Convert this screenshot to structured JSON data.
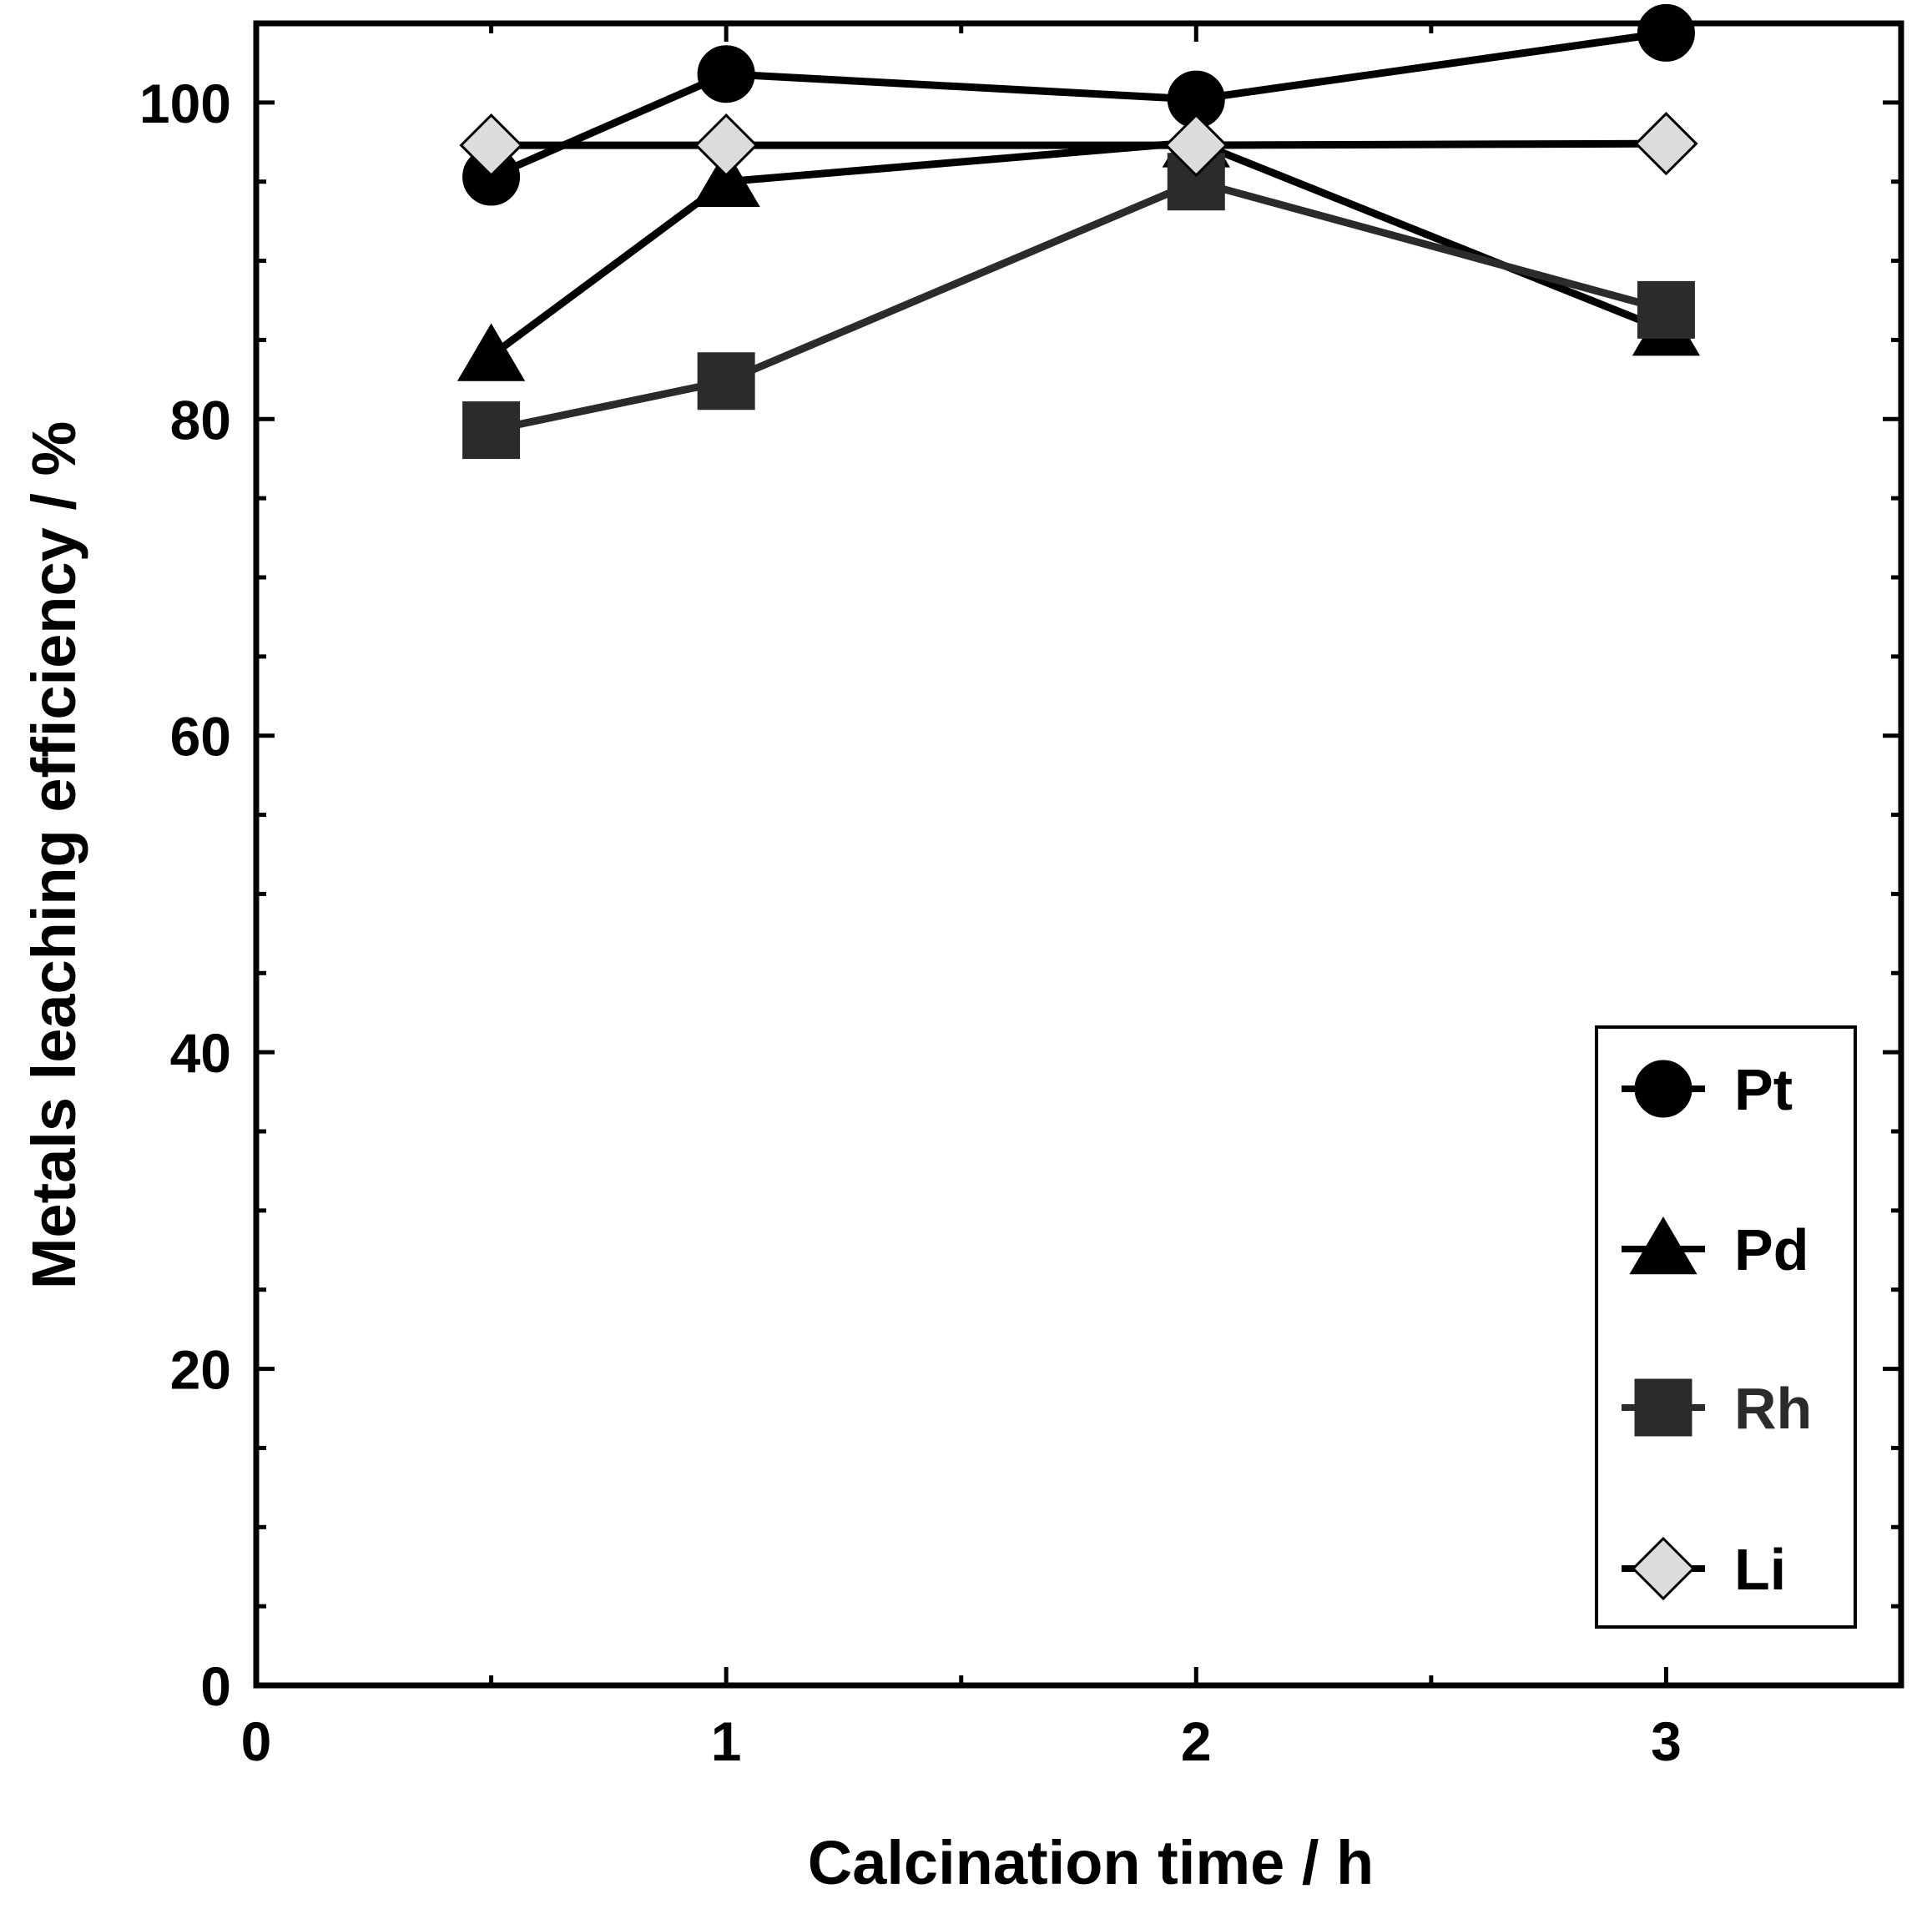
{
  "chart_data": {
    "type": "line",
    "title": "",
    "xlabel": "Calcination time / h",
    "ylabel": "Metals leaching efficiency / %",
    "xlim": [
      0,
      3.5
    ],
    "ylim": [
      0,
      105
    ],
    "x_ticks": [
      0,
      1,
      2,
      3
    ],
    "x_tick_labels": [
      "0",
      "1",
      "2",
      "3"
    ],
    "x_minor_ticks": [
      0.5,
      1.5,
      2.5
    ],
    "y_ticks": [
      0,
      20,
      40,
      60,
      80,
      100
    ],
    "y_tick_labels": [
      "0",
      "20",
      "40",
      "60",
      "80",
      "100"
    ],
    "y_minor_ticks": [
      5,
      10,
      15,
      25,
      30,
      35,
      45,
      50,
      55,
      65,
      70,
      75,
      85,
      90,
      95
    ],
    "grid": false,
    "legend_position": "bottom-right",
    "series": [
      {
        "name": "Pt",
        "marker": "circle",
        "color": "#000000",
        "fill": "#000000",
        "x": [
          0.5,
          1,
          2,
          3
        ],
        "values": [
          95.3,
          101.8,
          100.2,
          104.4
        ]
      },
      {
        "name": "Pd",
        "marker": "triangle",
        "color": "#000000",
        "fill": "#000000",
        "x": [
          0.5,
          1,
          2,
          3
        ],
        "values": [
          84.0,
          95.0,
          97.5,
          85.6
        ]
      },
      {
        "name": "Rh",
        "marker": "square",
        "color": "#2b2b2b",
        "fill": "#2b2b2b",
        "x": [
          0.5,
          1,
          2,
          3
        ],
        "values": [
          79.3,
          82.4,
          95.0,
          86.9
        ]
      },
      {
        "name": "Li",
        "marker": "diamond",
        "color": "#000000",
        "fill": "#dcdcdc",
        "x": [
          0.5,
          1,
          2,
          3
        ],
        "values": [
          97.3,
          97.3,
          97.3,
          97.4
        ]
      }
    ]
  }
}
